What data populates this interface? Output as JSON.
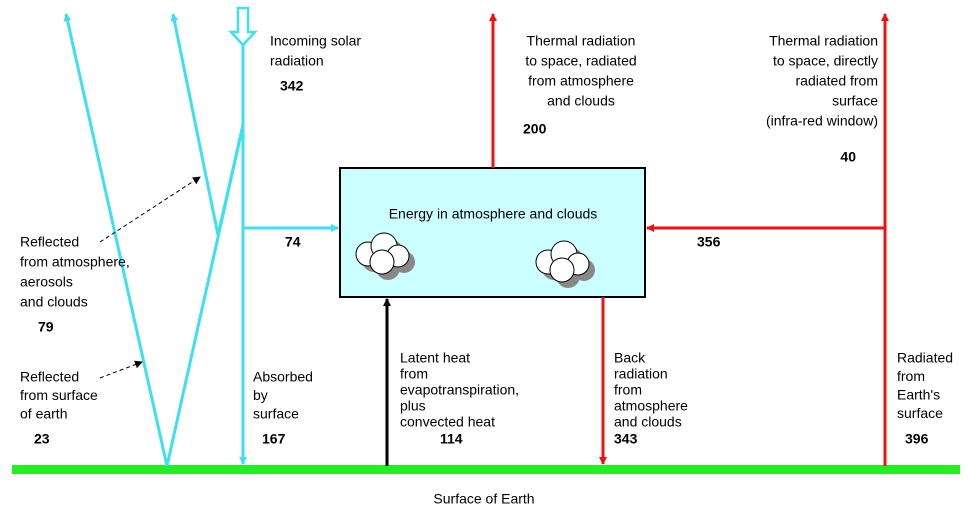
{
  "box_label": "Energy in atmosphere and clouds",
  "surface_label": "Surface of Earth",
  "flows": [
    {
      "lines": [
        "Incoming solar",
        "radiation"
      ],
      "value": 342
    },
    {
      "lines": [
        "Thermal radiation",
        "to space, radiated",
        "from atmosphere",
        "and clouds"
      ],
      "value": 200
    },
    {
      "lines": [
        "Thermal radiation",
        "to space, directly",
        "radiated from",
        "surface",
        "(infra-red window)"
      ],
      "value": 40
    },
    {
      "lines": [
        "Reflected",
        "from atmosphere,",
        "aerosols",
        "and clouds"
      ],
      "value": 79
    },
    {
      "lines": [
        "Reflected",
        "from surface",
        "of earth"
      ],
      "value": 23
    },
    {
      "lines": [
        "Absorbed",
        "by",
        "surface"
      ],
      "value": 167
    },
    {
      "lines": [
        "Latent heat",
        "from",
        "evapotranspiration,",
        "plus",
        "convected heat"
      ],
      "value": 114
    },
    {
      "lines": [
        "Back",
        "radiation",
        "from",
        "atmosphere",
        "and clouds"
      ],
      "value": 343
    },
    {
      "lines": [
        "Radiated",
        "from",
        "Earth's",
        "surface"
      ],
      "value": 396
    }
  ],
  "arrow_values": [
    74,
    356
  ]
}
